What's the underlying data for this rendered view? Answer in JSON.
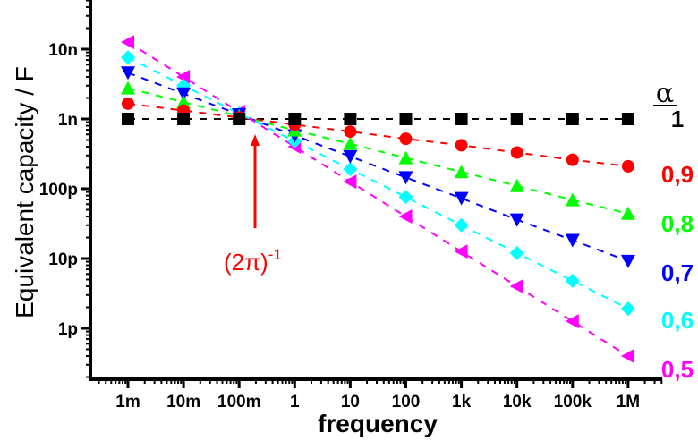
{
  "chart_data": {
    "type": "scatter",
    "title": "",
    "xlabel": "frequency",
    "ylabel": "Equivalent capacity / F",
    "xscale": "log",
    "yscale": "log",
    "xlim": [
      0.0003,
      5000000
    ],
    "ylim": [
      2.5e-13,
      4e-08
    ],
    "x_ticks": [
      {
        "value": 0.001,
        "label": "1m"
      },
      {
        "value": 0.01,
        "label": "10m"
      },
      {
        "value": 0.1,
        "label": "100m"
      },
      {
        "value": 1,
        "label": "1"
      },
      {
        "value": 10,
        "label": "10"
      },
      {
        "value": 100,
        "label": "100"
      },
      {
        "value": 1000,
        "label": "1k"
      },
      {
        "value": 10000,
        "label": "10k"
      },
      {
        "value": 100000,
        "label": "100k"
      },
      {
        "value": 1000000,
        "label": "1M"
      }
    ],
    "y_ticks": [
      {
        "value": 1e-08,
        "label": "10n"
      },
      {
        "value": 1e-09,
        "label": "1n"
      },
      {
        "value": 1e-10,
        "label": "100p"
      },
      {
        "value": 1e-11,
        "label": "10p"
      },
      {
        "value": 1e-12,
        "label": "1p"
      }
    ],
    "x": [
      0.001,
      0.01,
      0.1,
      1,
      10,
      100,
      1000,
      10000,
      100000,
      1000000
    ],
    "legend_title": "α",
    "legend_placement": "right",
    "series": [
      {
        "name": "1",
        "alpha": 1.0,
        "color": "#000000",
        "marker": "square",
        "values": [
          1e-09,
          1e-09,
          1e-09,
          1e-09,
          1e-09,
          1e-09,
          1e-09,
          1e-09,
          1e-09,
          1e-09
        ]
      },
      {
        "name": "0,9",
        "alpha": 0.9,
        "color": "#ff0000",
        "marker": "circle",
        "values": [
          1.66e-09,
          1.32e-09,
          1.05e-09,
          8.3e-10,
          6.6e-10,
          5.2e-10,
          4.2e-10,
          3.3e-10,
          2.6e-10,
          2.1e-10
        ]
      },
      {
        "name": "0,8",
        "alpha": 0.8,
        "color": "#00ff00",
        "marker": "triangle-up",
        "values": [
          2.76e-09,
          1.74e-09,
          1.1e-09,
          6.9e-10,
          4.4e-10,
          2.76e-10,
          1.74e-10,
          1.1e-10,
          6.9e-11,
          4.4e-11
        ]
      },
      {
        "name": "0,7",
        "alpha": 0.7,
        "color": "#0000ff",
        "marker": "triangle-down",
        "values": [
          4.6e-09,
          2.3e-09,
          1.16e-09,
          5.8e-10,
          2.9e-10,
          1.45e-10,
          7.3e-11,
          3.6e-11,
          1.83e-11,
          9.2e-12
        ]
      },
      {
        "name": "0,6",
        "alpha": 0.6,
        "color": "#00ffff",
        "marker": "diamond",
        "values": [
          7.6e-09,
          3e-09,
          1.2e-09,
          4.8e-10,
          1.91e-10,
          7.6e-11,
          3e-11,
          1.2e-11,
          4.8e-12,
          1.91e-12
        ]
      },
      {
        "name": "0,5",
        "alpha": 0.5,
        "color": "#ff00ff",
        "marker": "triangle-left",
        "values": [
          1.26e-08,
          4e-09,
          1.26e-09,
          4e-10,
          1.26e-10,
          4e-11,
          1.26e-11,
          4e-12,
          1.26e-12,
          4e-13
        ]
      }
    ],
    "annotations": [
      {
        "text": "(2π)",
        "superscript": "-1",
        "color": "#ff0000",
        "points_to_x": 0.159,
        "arrow": "up"
      }
    ],
    "grid": false
  }
}
